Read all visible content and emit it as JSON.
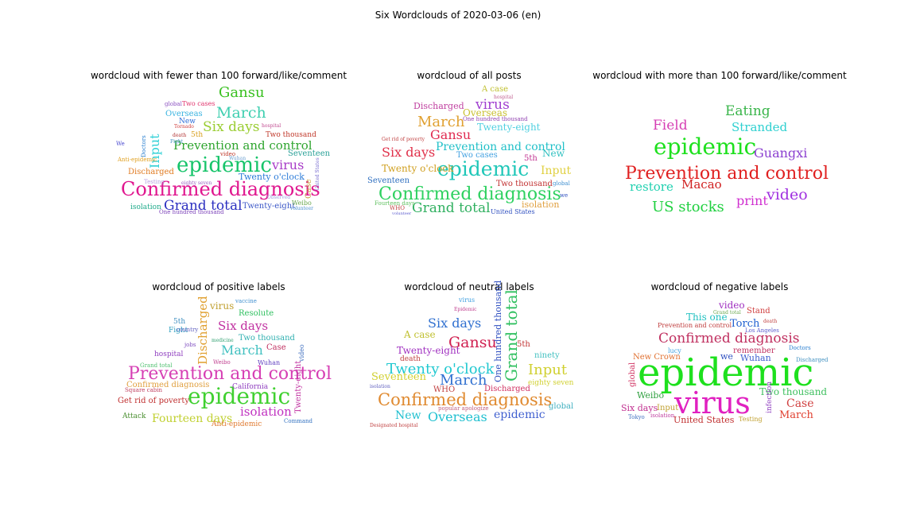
{
  "title": "Six Wordclouds of 2020-03-06 (en)",
  "chart_data": [
    {
      "type": "wordcloud",
      "title": "wordcloud with fewer than 100 forward/like/comment",
      "words": [
        {
          "text": "Confirmed diagnosis",
          "color": "#e0178f"
        },
        {
          "text": "epidemic",
          "color": "#17c46a"
        },
        {
          "text": "Grand total",
          "color": "#2b2fc0"
        },
        {
          "text": "Prevention and control",
          "color": "#2fa52f"
        },
        {
          "text": "March",
          "color": "#3fcfb0"
        },
        {
          "text": "Gansu",
          "color": "#39c020"
        },
        {
          "text": "Six days",
          "color": "#9acd32"
        },
        {
          "text": "virus",
          "color": "#a83cc8"
        },
        {
          "text": "Input",
          "color": "#2fd0d6"
        },
        {
          "text": "Twenty-eight",
          "color": "#3b57c7"
        },
        {
          "text": "Twenty o'clock",
          "color": "#2b7bd8"
        },
        {
          "text": "Overseas",
          "color": "#38b3e0"
        },
        {
          "text": "Seventeen",
          "color": "#2aa198"
        },
        {
          "text": "Two thousand",
          "color": "#c0392b"
        },
        {
          "text": "Two cases",
          "color": "#e0306a"
        },
        {
          "text": "Discharged",
          "color": "#e07a20"
        },
        {
          "text": "isolation",
          "color": "#1faa8a"
        },
        {
          "text": "One hundred thousand",
          "color": "#7a3fb8"
        },
        {
          "text": "New",
          "color": "#2a6bd8"
        },
        {
          "text": "5th",
          "color": "#d8a020"
        },
        {
          "text": "Weibo",
          "color": "#6aa84f"
        },
        {
          "text": "volunteer",
          "color": "#4a8fd0"
        },
        {
          "text": "Case",
          "color": "#c8a040"
        },
        {
          "text": "United States",
          "color": "#7a6fd0"
        },
        {
          "text": "video",
          "color": "#c0392b"
        },
        {
          "text": "Doctors",
          "color": "#2a7fd0"
        },
        {
          "text": "Testing",
          "color": "#b8a0e0"
        },
        {
          "text": "eighty seven",
          "color": "#9a60c0"
        },
        {
          "text": "global",
          "color": "#8a4fc0"
        },
        {
          "text": "hospital",
          "color": "#c04a90"
        },
        {
          "text": "death",
          "color": "#b03030"
        },
        {
          "text": "Wuhan",
          "color": "#6aa0d0"
        },
        {
          "text": "Tornado",
          "color": "#d04040"
        },
        {
          "text": "We",
          "color": "#4a4ad0"
        },
        {
          "text": "Anti-epidemic",
          "color": "#e0a020"
        },
        {
          "text": "Fight",
          "color": "#3f8fc0"
        },
        {
          "text": "Observed",
          "color": "#a0a0e0"
        }
      ]
    },
    {
      "type": "wordcloud",
      "title": "wordcloud of all posts",
      "words": [
        {
          "text": "Confirmed diagnosis",
          "color": "#2ed160"
        },
        {
          "text": "epidemic",
          "color": "#1fc7b8"
        },
        {
          "text": "Grand total",
          "color": "#30b060"
        },
        {
          "text": "Prevention and control",
          "color": "#20c0c8"
        },
        {
          "text": "March",
          "color": "#e0a030"
        },
        {
          "text": "virus",
          "color": "#a03fd0"
        },
        {
          "text": "Six days",
          "color": "#e0304a"
        },
        {
          "text": "Gansu",
          "color": "#e02a50"
        },
        {
          "text": "Discharged",
          "color": "#c040a0"
        },
        {
          "text": "Overseas",
          "color": "#c8c030"
        },
        {
          "text": "Twenty-eight",
          "color": "#50d0e0"
        },
        {
          "text": "Twenty o'clock",
          "color": "#d0a020"
        },
        {
          "text": "Input",
          "color": "#e0d040"
        },
        {
          "text": "Two cases",
          "color": "#40a0e0"
        },
        {
          "text": "Two thousand",
          "color": "#c03030"
        },
        {
          "text": "Seventeen",
          "color": "#3070c0"
        },
        {
          "text": "isolation",
          "color": "#e0a040"
        },
        {
          "text": "New",
          "color": "#30c0c0"
        },
        {
          "text": "5th",
          "color": "#c03090"
        },
        {
          "text": "United States",
          "color": "#3050c0"
        },
        {
          "text": "A case",
          "color": "#c0c030"
        },
        {
          "text": "One hundred thousand",
          "color": "#9040b0"
        },
        {
          "text": "Fourteen days",
          "color": "#60c060"
        },
        {
          "text": "global",
          "color": "#4090d0"
        },
        {
          "text": "WHO",
          "color": "#c04040"
        },
        {
          "text": "volunteer",
          "color": "#6060d0"
        },
        {
          "text": "hospital",
          "color": "#c06090"
        },
        {
          "text": "Get rid of poverty",
          "color": "#c04040"
        },
        {
          "text": "we",
          "color": "#3050c0"
        }
      ]
    },
    {
      "type": "wordcloud",
      "title": "wordcloud with more than 100 forward/like/comment",
      "words": [
        {
          "text": "Eating",
          "color": "#39b54a"
        },
        {
          "text": "Field",
          "color": "#d63fb4"
        },
        {
          "text": "Stranded",
          "color": "#2ed0d0"
        },
        {
          "text": "epidemic",
          "color": "#1ee01e"
        },
        {
          "text": "Guangxi",
          "color": "#8b3fd0"
        },
        {
          "text": "Prevention and control",
          "color": "#e02020"
        },
        {
          "text": "restore",
          "color": "#20d0b0"
        },
        {
          "text": "Macao",
          "color": "#d02020"
        },
        {
          "text": "video",
          "color": "#a030e0"
        },
        {
          "text": "print",
          "color": "#d030d0"
        },
        {
          "text": "US stocks",
          "color": "#20d040"
        }
      ]
    },
    {
      "type": "wordcloud",
      "title": "wordcloud of positive labels",
      "words": [
        {
          "text": "Prevention and control",
          "color": "#d63fb4"
        },
        {
          "text": "epidemic",
          "color": "#40d030"
        },
        {
          "text": "isolation",
          "color": "#c030c0"
        },
        {
          "text": "Fourteen days",
          "color": "#c0d030"
        },
        {
          "text": "March",
          "color": "#40c0c0"
        },
        {
          "text": "Six days",
          "color": "#c030a0"
        },
        {
          "text": "Discharged",
          "color": "#e0a030"
        },
        {
          "text": "virus",
          "color": "#c0a030"
        },
        {
          "text": "Two thousand",
          "color": "#30b0b0"
        },
        {
          "text": "Case",
          "color": "#c03060"
        },
        {
          "text": "Resolute",
          "color": "#30c060"
        },
        {
          "text": "Twenty-eight",
          "color": "#c030a0"
        },
        {
          "text": "hospital",
          "color": "#9040c0"
        },
        {
          "text": "5th",
          "color": "#4090c0"
        },
        {
          "text": "Fight",
          "color": "#30a0c0"
        },
        {
          "text": "country",
          "color": "#6060c0"
        },
        {
          "text": "Get rid of poverty",
          "color": "#c03030"
        },
        {
          "text": "Attack",
          "color": "#4a8f30"
        },
        {
          "text": "Anti-epidemic",
          "color": "#e07a30"
        },
        {
          "text": "California",
          "color": "#9040c0"
        },
        {
          "text": "Confirmed diagnosis",
          "color": "#e0a040"
        },
        {
          "text": "Command",
          "color": "#3070c0"
        },
        {
          "text": "Wuhan",
          "color": "#6040c0"
        },
        {
          "text": "Weibo",
          "color": "#c04090"
        },
        {
          "text": "vaccine",
          "color": "#4090d0"
        },
        {
          "text": "Grand total",
          "color": "#50c070"
        },
        {
          "text": "jobs",
          "color": "#8050c0"
        },
        {
          "text": "Square cabin",
          "color": "#c04060"
        },
        {
          "text": "medicine",
          "color": "#30a070"
        },
        {
          "text": "video",
          "color": "#4070c0"
        }
      ]
    },
    {
      "type": "wordcloud",
      "title": "wordcloud of neutral labels",
      "words": [
        {
          "text": "Confirmed diagnosis",
          "color": "#e08a30"
        },
        {
          "text": "Twenty o'clock",
          "color": "#20c8d0"
        },
        {
          "text": "Gansu",
          "color": "#d02050"
        },
        {
          "text": "Six days",
          "color": "#3070d0"
        },
        {
          "text": "March",
          "color": "#3070d0"
        },
        {
          "text": "Grand total",
          "color": "#30c060"
        },
        {
          "text": "Input",
          "color": "#d0d030"
        },
        {
          "text": "Overseas",
          "color": "#20c0d0"
        },
        {
          "text": "New",
          "color": "#20c0d0"
        },
        {
          "text": "epidemic",
          "color": "#4060d0"
        },
        {
          "text": "Seventeen",
          "color": "#d0d030"
        },
        {
          "text": "Twenty-eight",
          "color": "#a030c0"
        },
        {
          "text": "A case",
          "color": "#c0c030"
        },
        {
          "text": "One hundred thousand",
          "color": "#3050c0"
        },
        {
          "text": "Discharged",
          "color": "#d03060"
        },
        {
          "text": "5th",
          "color": "#c03030"
        },
        {
          "text": "ninety",
          "color": "#40c0c0"
        },
        {
          "text": "eighty seven",
          "color": "#d0d030"
        },
        {
          "text": "WHO",
          "color": "#c04040"
        },
        {
          "text": "death",
          "color": "#c04040"
        },
        {
          "text": "global",
          "color": "#40b0c0"
        },
        {
          "text": "virus",
          "color": "#40a0e0"
        },
        {
          "text": "isolation",
          "color": "#6060c0"
        },
        {
          "text": "Epidemic",
          "color": "#c04090"
        },
        {
          "text": "Designated hospital",
          "color": "#c04040"
        },
        {
          "text": "popular apologize",
          "color": "#c06080"
        }
      ]
    },
    {
      "type": "wordcloud",
      "title": "wordcloud of negative labels",
      "words": [
        {
          "text": "epidemic",
          "color": "#1ee01e"
        },
        {
          "text": "virus",
          "color": "#e020c0"
        },
        {
          "text": "Confirmed diagnosis",
          "color": "#c03060"
        },
        {
          "text": "Two thousand",
          "color": "#40c060"
        },
        {
          "text": "Case",
          "color": "#d04040"
        },
        {
          "text": "March",
          "color": "#e04030"
        },
        {
          "text": "United States",
          "color": "#c03030"
        },
        {
          "text": "Six days",
          "color": "#c03090"
        },
        {
          "text": "Weibo",
          "color": "#30a040"
        },
        {
          "text": "Input",
          "color": "#c0a030"
        },
        {
          "text": "Torch",
          "color": "#2060d0"
        },
        {
          "text": "This one",
          "color": "#20c0c0"
        },
        {
          "text": "Wuhan",
          "color": "#4060d0"
        },
        {
          "text": "New Crown",
          "color": "#e07030"
        },
        {
          "text": "video",
          "color": "#a030c0"
        },
        {
          "text": "Stand",
          "color": "#d04040"
        },
        {
          "text": "remember",
          "color": "#c03060"
        },
        {
          "text": "global",
          "color": "#d03060"
        },
        {
          "text": "Prevention and control",
          "color": "#c04040"
        },
        {
          "text": "we",
          "color": "#3050c0"
        },
        {
          "text": "lucy",
          "color": "#40a0e0"
        },
        {
          "text": "Testing",
          "color": "#c0a030"
        },
        {
          "text": "Tokyo",
          "color": "#4070c0"
        },
        {
          "text": "isolation",
          "color": "#c040a0"
        },
        {
          "text": "Doctors",
          "color": "#2a7fd0"
        },
        {
          "text": "Discharged",
          "color": "#4090c0"
        },
        {
          "text": "infection",
          "color": "#9040c0"
        },
        {
          "text": "Los Angeles",
          "color": "#6060d0"
        },
        {
          "text": "Grand total",
          "color": "#6aa84f"
        },
        {
          "text": "death",
          "color": "#c04040"
        }
      ]
    }
  ]
}
